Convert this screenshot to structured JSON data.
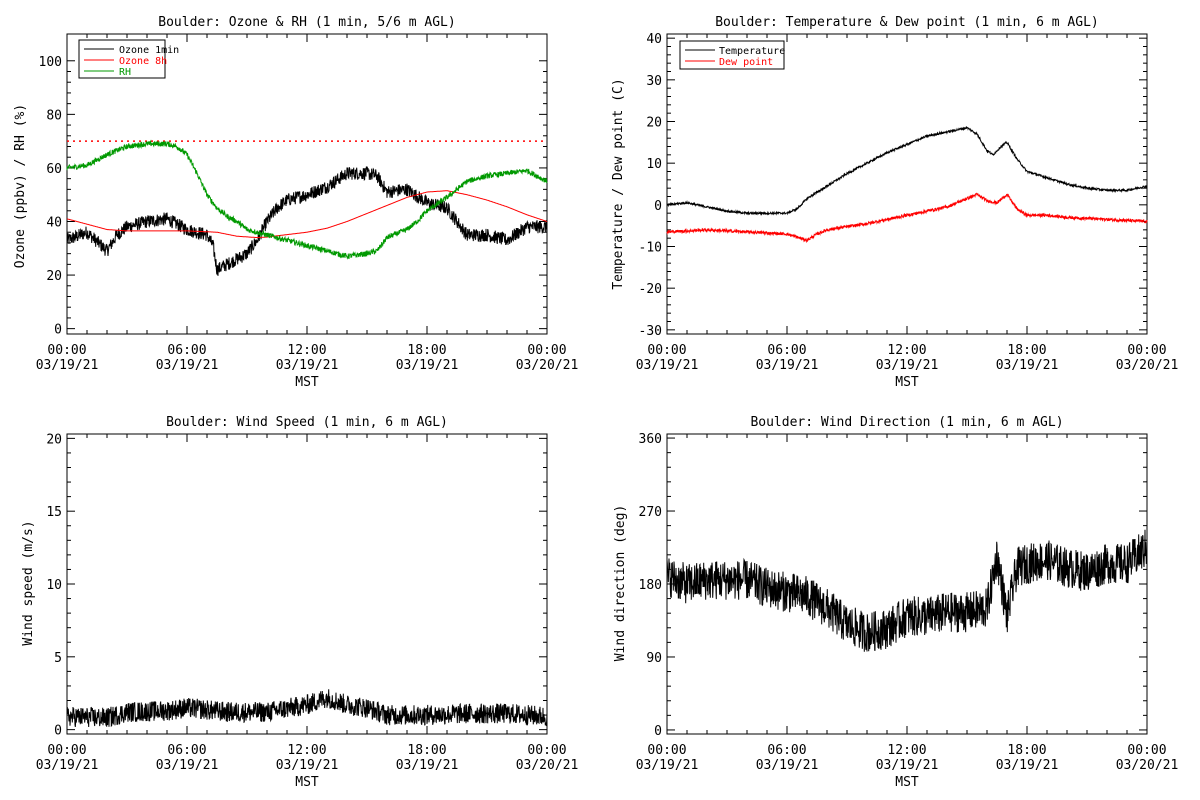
{
  "chart_data": [
    {
      "id": "ozone",
      "type": "line",
      "title": "Boulder: Ozone & RH (1 min, 5/6 m AGL)",
      "xlabel": "MST",
      "ylabel": "Ozone (ppbv) / RH (%)",
      "xticks": [
        {
          "hour": 0,
          "time": "00:00",
          "date": "03/19/21"
        },
        {
          "hour": 6,
          "time": "06:00",
          "date": "03/19/21"
        },
        {
          "hour": 12,
          "time": "12:00",
          "date": "03/19/21"
        },
        {
          "hour": 18,
          "time": "18:00",
          "date": "03/19/21"
        },
        {
          "hour": 24,
          "time": "00:00",
          "date": "03/20/21"
        }
      ],
      "xlim": [
        0,
        24
      ],
      "ylim": [
        -2,
        110
      ],
      "yticks": [
        0,
        20,
        40,
        60,
        80,
        100
      ],
      "legend": "top-left",
      "reference_line": {
        "y": 70,
        "color": "#ff0000",
        "style": "dotted"
      },
      "series": [
        {
          "name": "Ozone 1min",
          "color": "#000000",
          "noise": 2.5,
          "points": [
            [
              0,
              33
            ],
            [
              1,
              36
            ],
            [
              2,
              29
            ],
            [
              2.5,
              35
            ],
            [
              3,
              38
            ],
            [
              4,
              40
            ],
            [
              5,
              41
            ],
            [
              5.5,
              39
            ],
            [
              6,
              37
            ],
            [
              6.5,
              36
            ],
            [
              7,
              35
            ],
            [
              7.3,
              31
            ],
            [
              7.5,
              22
            ],
            [
              8,
              24
            ],
            [
              9,
              28
            ],
            [
              9.5,
              33
            ],
            [
              10,
              40
            ],
            [
              10.5,
              45
            ],
            [
              11,
              48
            ],
            [
              12,
              50
            ],
            [
              13,
              53
            ],
            [
              14,
              58
            ],
            [
              15,
              58
            ],
            [
              15.5,
              57
            ],
            [
              16,
              51
            ],
            [
              17,
              52
            ],
            [
              18,
              47
            ],
            [
              19,
              45
            ],
            [
              20,
              35
            ],
            [
              21,
              35
            ],
            [
              22,
              33
            ],
            [
              23,
              38
            ],
            [
              24,
              38
            ]
          ]
        },
        {
          "name": "Ozone 8h",
          "color": "#ff0000",
          "noise": 0,
          "points": [
            [
              0,
              41
            ],
            [
              1,
              39
            ],
            [
              2,
              37
            ],
            [
              3,
              36.5
            ],
            [
              4,
              36.5
            ],
            [
              6,
              36.5
            ],
            [
              7.5,
              36
            ],
            [
              8.5,
              34.5
            ],
            [
              9.5,
              34
            ],
            [
              10,
              34.2
            ],
            [
              12,
              36
            ],
            [
              13,
              37.5
            ],
            [
              14,
              40
            ],
            [
              15,
              43
            ],
            [
              16,
              46
            ],
            [
              17,
              49
            ],
            [
              18,
              51
            ],
            [
              19,
              51.5
            ],
            [
              20,
              50
            ],
            [
              21,
              48
            ],
            [
              22,
              45.5
            ],
            [
              23,
              42.5
            ],
            [
              24,
              40
            ]
          ]
        },
        {
          "name": "RH",
          "color": "#009900",
          "noise": 1,
          "points": [
            [
              0,
              60
            ],
            [
              1,
              61
            ],
            [
              2,
              65
            ],
            [
              3,
              68
            ],
            [
              4,
              69
            ],
            [
              5,
              69
            ],
            [
              5.5,
              68
            ],
            [
              6,
              65
            ],
            [
              6.5,
              58
            ],
            [
              7,
              50
            ],
            [
              7.5,
              45
            ],
            [
              8,
              42
            ],
            [
              8.5,
              40
            ],
            [
              9,
              37
            ],
            [
              10,
              35
            ],
            [
              11,
              33
            ],
            [
              12,
              31
            ],
            [
              13,
              29
            ],
            [
              14,
              27
            ],
            [
              15,
              28
            ],
            [
              15.5,
              29
            ],
            [
              16,
              34
            ],
            [
              17,
              37
            ],
            [
              17.5,
              40
            ],
            [
              18,
              44
            ],
            [
              19,
              49
            ],
            [
              20,
              55
            ],
            [
              21,
              57
            ],
            [
              22,
              58
            ],
            [
              23,
              59
            ],
            [
              24,
              55
            ]
          ]
        }
      ]
    },
    {
      "id": "temp",
      "type": "line",
      "title": "Boulder: Temperature & Dew point (1 min, 6 m AGL)",
      "xlabel": "MST",
      "ylabel": "Temperature / Dew point (C)",
      "xticks": [
        {
          "hour": 0,
          "time": "00:00",
          "date": "03/19/21"
        },
        {
          "hour": 6,
          "time": "06:00",
          "date": "03/19/21"
        },
        {
          "hour": 12,
          "time": "12:00",
          "date": "03/19/21"
        },
        {
          "hour": 18,
          "time": "18:00",
          "date": "03/19/21"
        },
        {
          "hour": 24,
          "time": "00:00",
          "date": "03/20/21"
        }
      ],
      "xlim": [
        0,
        24
      ],
      "ylim": [
        -31,
        41
      ],
      "yticks": [
        -30,
        -20,
        -10,
        0,
        10,
        20,
        30,
        40
      ],
      "legend": "top-left",
      "series": [
        {
          "name": "Temperature",
          "color": "#000000",
          "noise": 0.25,
          "points": [
            [
              0,
              0
            ],
            [
              1,
              0.5
            ],
            [
              2,
              -0.5
            ],
            [
              3,
              -1.5
            ],
            [
              4,
              -2
            ],
            [
              5,
              -2
            ],
            [
              6,
              -2
            ],
            [
              6.5,
              -1
            ],
            [
              7,
              1.5
            ],
            [
              8,
              4.5
            ],
            [
              9,
              7.5
            ],
            [
              10,
              10
            ],
            [
              11,
              12.5
            ],
            [
              12,
              14.5
            ],
            [
              13,
              16.5
            ],
            [
              14,
              17.5
            ],
            [
              15,
              18.5
            ],
            [
              15.5,
              17
            ],
            [
              16,
              13
            ],
            [
              16.3,
              12
            ],
            [
              16.7,
              14
            ],
            [
              17,
              15
            ],
            [
              17.5,
              11
            ],
            [
              18,
              8
            ],
            [
              19,
              6.5
            ],
            [
              20,
              5
            ],
            [
              21,
              4
            ],
            [
              22,
              3.5
            ],
            [
              23,
              3.5
            ],
            [
              24,
              4.5
            ]
          ]
        },
        {
          "name": "Dew point",
          "color": "#ff0000",
          "noise": 0.35,
          "points": [
            [
              0,
              -6.5
            ],
            [
              2,
              -6
            ],
            [
              4,
              -6.5
            ],
            [
              6,
              -7
            ],
            [
              7,
              -8.5
            ],
            [
              7.5,
              -7
            ],
            [
              8,
              -6
            ],
            [
              10,
              -4.5
            ],
            [
              12,
              -2.5
            ],
            [
              13,
              -1.5
            ],
            [
              14,
              -0.5
            ],
            [
              15,
              1.5
            ],
            [
              15.5,
              2.5
            ],
            [
              16,
              1
            ],
            [
              16.5,
              0.5
            ],
            [
              17,
              2.5
            ],
            [
              17.5,
              -1
            ],
            [
              18,
              -2.5
            ],
            [
              19,
              -2.5
            ],
            [
              20,
              -3
            ],
            [
              22,
              -3.5
            ],
            [
              24,
              -4
            ]
          ]
        }
      ]
    },
    {
      "id": "wspd",
      "type": "line",
      "title": "Boulder: Wind Speed (1 min, 6 m AGL)",
      "xlabel": "MST",
      "ylabel": "Wind speed (m/s)",
      "xticks": [
        {
          "hour": 0,
          "time": "00:00",
          "date": "03/19/21"
        },
        {
          "hour": 6,
          "time": "06:00",
          "date": "03/19/21"
        },
        {
          "hour": 12,
          "time": "12:00",
          "date": "03/19/21"
        },
        {
          "hour": 18,
          "time": "18:00",
          "date": "03/19/21"
        },
        {
          "hour": 24,
          "time": "00:00",
          "date": "03/20/21"
        }
      ],
      "xlim": [
        0,
        24
      ],
      "ylim": [
        -0.3,
        20.3
      ],
      "yticks": [
        0,
        5,
        10,
        15,
        20
      ],
      "series": [
        {
          "color": "#000000",
          "noise": 0.7,
          "floor": 0,
          "points": [
            [
              0,
              0.9
            ],
            [
              2,
              0.8
            ],
            [
              3,
              1.2
            ],
            [
              5,
              1.3
            ],
            [
              6,
              1.5
            ],
            [
              8,
              1.2
            ],
            [
              10,
              1.2
            ],
            [
              12,
              1.7
            ],
            [
              13,
              2.2
            ],
            [
              14,
              1.7
            ],
            [
              15,
              1.5
            ],
            [
              16,
              1
            ],
            [
              18,
              1
            ],
            [
              20,
              1.1
            ],
            [
              22,
              1.1
            ],
            [
              24,
              0.9
            ]
          ]
        }
      ]
    },
    {
      "id": "wdir",
      "type": "line",
      "title": "Boulder: Wind Direction (1 min, 6 m AGL)",
      "xlabel": "MST",
      "ylabel": "Wind direction (deg)",
      "xticks": [
        {
          "hour": 0,
          "time": "00:00",
          "date": "03/19/21"
        },
        {
          "hour": 6,
          "time": "06:00",
          "date": "03/19/21"
        },
        {
          "hour": 12,
          "time": "12:00",
          "date": "03/19/21"
        },
        {
          "hour": 18,
          "time": "18:00",
          "date": "03/19/21"
        },
        {
          "hour": 24,
          "time": "00:00",
          "date": "03/20/21"
        }
      ],
      "xlim": [
        0,
        24
      ],
      "ylim": [
        -5,
        365
      ],
      "yticks": [
        0,
        90,
        180,
        270,
        360
      ],
      "series": [
        {
          "color": "#000000",
          "noise": 25,
          "floor": 0,
          "ceiling": 360,
          "points": [
            [
              0,
              190
            ],
            [
              1,
              180
            ],
            [
              2,
              185
            ],
            [
              3,
              185
            ],
            [
              4,
              185
            ],
            [
              5,
              175
            ],
            [
              6,
              170
            ],
            [
              7,
              165
            ],
            [
              8,
              150
            ],
            [
              9,
              130
            ],
            [
              10,
              120
            ],
            [
              11,
              125
            ],
            [
              12,
              140
            ],
            [
              13,
              140
            ],
            [
              14,
              145
            ],
            [
              15,
              145
            ],
            [
              16,
              150
            ],
            [
              16.5,
              215
            ],
            [
              17,
              140
            ],
            [
              17.5,
              200
            ],
            [
              18,
              205
            ],
            [
              19,
              210
            ],
            [
              20,
              200
            ],
            [
              21,
              195
            ],
            [
              22,
              205
            ],
            [
              23,
              205
            ],
            [
              24,
              225
            ]
          ]
        }
      ]
    }
  ]
}
